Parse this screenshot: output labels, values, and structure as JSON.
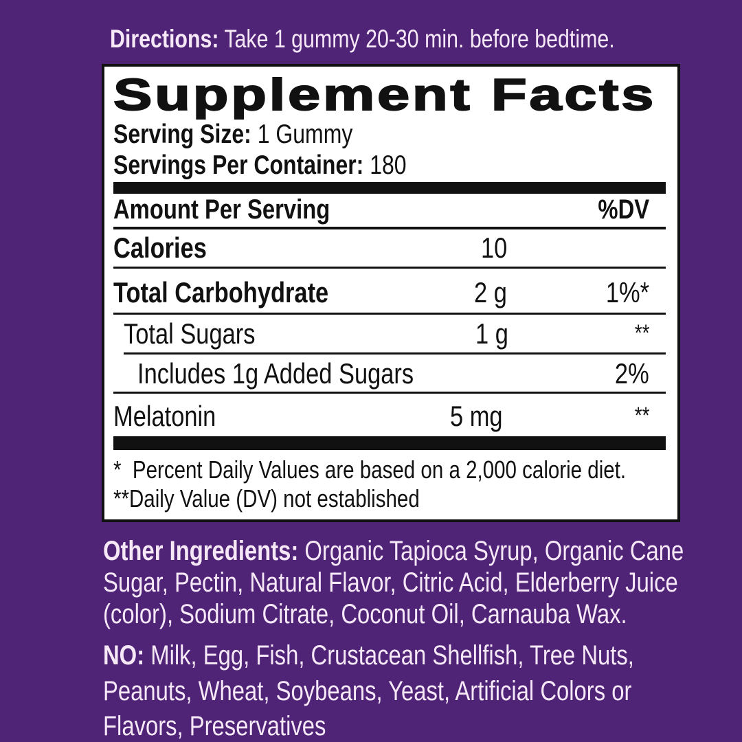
{
  "colors": {
    "background": "#4f2477",
    "panel": "#ffffff",
    "text_light": "#f7e8f7",
    "text_dark": "#111111"
  },
  "directions": {
    "label": "Directions:",
    "text": " Take 1 gummy 20-30 min. before bedtime."
  },
  "facts": {
    "title": "Supplement Facts",
    "serving_size_label": "Serving Size:",
    "serving_size_value": " 1 Gummy",
    "servings_label": "Servings Per Container:",
    "servings_value": " 180",
    "header_amount": "Amount Per Serving",
    "header_dv": "%DV",
    "rows": [
      {
        "name": "Calories",
        "amount": "10",
        "dv": ""
      },
      {
        "name": "Total Carbohydrate",
        "amount": "2 g",
        "dv": "1%*"
      },
      {
        "name": "Total Sugars",
        "amount": "1 g",
        "dv": "**"
      },
      {
        "name": "Includes 1g Added Sugars",
        "amount": "",
        "dv": "2%"
      },
      {
        "name": "Melatonin",
        "amount": "5 mg",
        "dv": "**"
      }
    ],
    "footnotes": [
      "*  Percent Daily Values are based on a 2,000 calorie diet.",
      "**Daily Value (DV) not established"
    ]
  },
  "ingredients": {
    "label": "Other Ingredients:",
    "lines": [
      " Organic Tapioca Syrup, Organic Cane",
      "Sugar, Pectin, Natural Flavor, Citric Acid, Elderberry Juice",
      "(color), Sodium Citrate, Coconut Oil, Carnauba Wax."
    ]
  },
  "allergens": {
    "label": "NO:",
    "lines": [
      " Milk, Egg, Fish, Crustacean Shellfish, Tree Nuts,",
      "Peanuts, Wheat, Soybeans, Yeast, Artificial Colors or",
      "Flavors, Preservatives"
    ]
  }
}
